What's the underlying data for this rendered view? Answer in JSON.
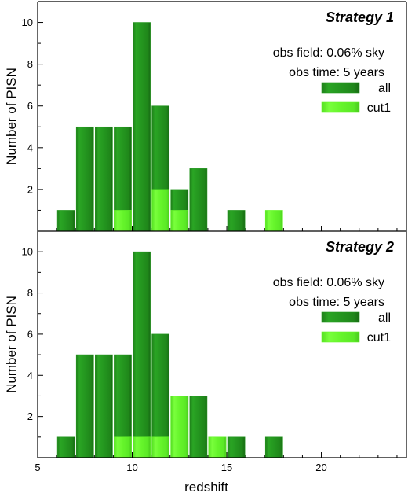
{
  "chart_data": [
    {
      "type": "bar",
      "title": "Strategy 1",
      "notes": [
        "obs field: 0.06% sky",
        "obs time: 5 years"
      ],
      "xlabel": "redshift",
      "ylabel": "Number of PISN",
      "xlim": [
        5,
        24.5
      ],
      "ylim": [
        0,
        11
      ],
      "xticks": [
        "5",
        "10",
        "15",
        "20"
      ],
      "yticks": [
        "2",
        "4",
        "6",
        "8",
        "10"
      ],
      "bin_width": 1,
      "bin_starts": [
        6,
        7,
        8,
        9,
        10,
        11,
        12,
        13,
        14,
        15,
        16,
        17
      ],
      "legend_position": "right",
      "series": [
        {
          "name": "all",
          "color": "#24961f",
          "values": [
            1,
            5,
            5,
            5,
            10,
            6,
            2,
            3,
            0,
            1,
            0,
            0
          ]
        },
        {
          "name": "cut1",
          "color": "#66f52b",
          "values": [
            0,
            0,
            0,
            1,
            0,
            2,
            1,
            0,
            0,
            0,
            0,
            1
          ]
        }
      ]
    },
    {
      "type": "bar",
      "title": "Strategy 2",
      "notes": [
        "obs field: 0.06% sky",
        "obs time: 5 years"
      ],
      "xlabel": "redshift",
      "ylabel": "Number of PISN",
      "xlim": [
        5,
        24.5
      ],
      "ylim": [
        0,
        11
      ],
      "xticks": [
        "5",
        "10",
        "15",
        "20"
      ],
      "yticks": [
        "2",
        "4",
        "6",
        "8",
        "10"
      ],
      "bin_width": 1,
      "bin_starts": [
        6,
        7,
        8,
        9,
        10,
        11,
        12,
        13,
        14,
        15,
        16,
        17
      ],
      "legend_position": "right",
      "series": [
        {
          "name": "all",
          "color": "#24961f",
          "values": [
            1,
            5,
            5,
            5,
            10,
            6,
            3,
            3,
            1,
            1,
            0,
            1
          ]
        },
        {
          "name": "cut1",
          "color": "#66f52b",
          "values": [
            0,
            0,
            0,
            1,
            1,
            1,
            3,
            0,
            1,
            0,
            0,
            0
          ]
        }
      ]
    }
  ]
}
